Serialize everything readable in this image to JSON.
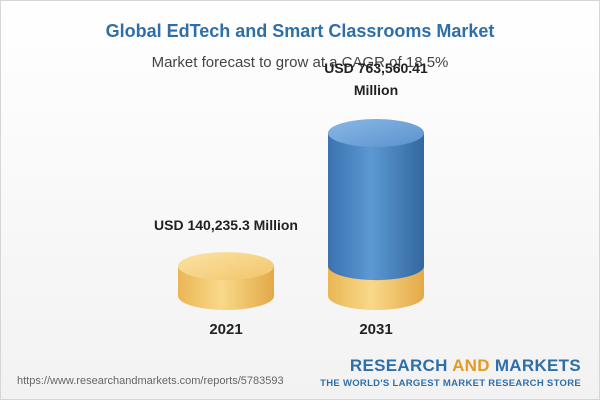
{
  "header": {
    "title": "Global EdTech and Smart Classrooms Market",
    "subtitle": "Market forecast to grow at a CAGR of 18.5%"
  },
  "chart_data": {
    "type": "bar",
    "categories": [
      "2021",
      "2031"
    ],
    "values": [
      140235.3,
      763560.41
    ],
    "data_labels": [
      "USD 140,235.3 Million",
      "USD 763,560.41 Million"
    ],
    "ylim": [
      0,
      763560.41
    ],
    "colors": {
      "base": "#f5c96a",
      "projected": "#4a86c5"
    }
  },
  "footer": {
    "url": "https://www.researchandmarkets.com/reports/5783593",
    "brand_part1": "RESEARCH ",
    "brand_and": "AND",
    "brand_part2": " MARKETS",
    "tagline": "THE WORLD'S LARGEST MARKET RESEARCH STORE"
  }
}
